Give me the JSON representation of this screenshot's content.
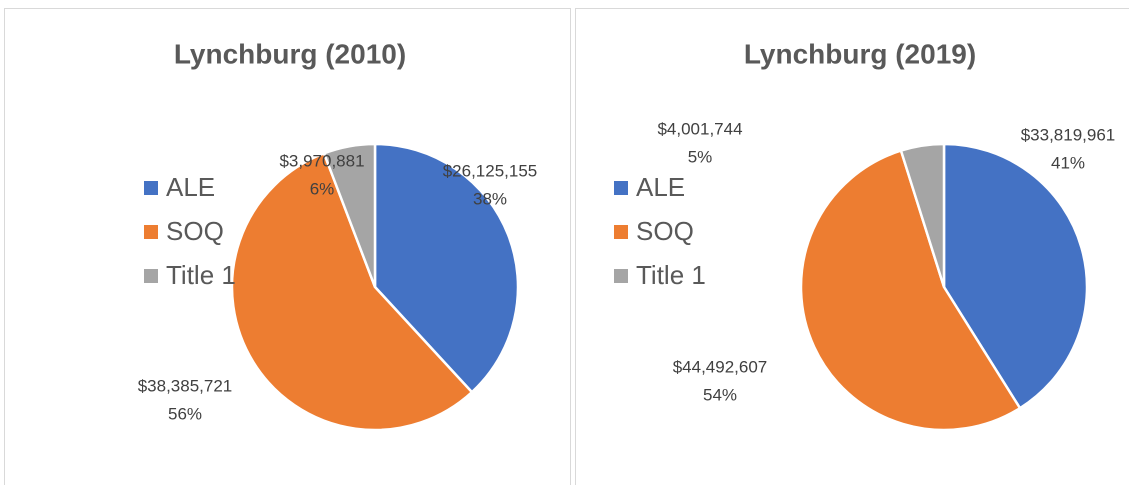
{
  "chart_data": [
    {
      "type": "pie",
      "title": "Lynchburg (2010)",
      "categories": [
        "ALE",
        "SOQ",
        "Title 1"
      ],
      "values": [
        26125155,
        38385721,
        3970881
      ],
      "value_labels": [
        "$26,125,155",
        "$38,385,721",
        "$3,970,881"
      ],
      "percent_labels": [
        "38%",
        "56%",
        "6%"
      ],
      "colors": [
        "#4472c4",
        "#ed7d31",
        "#a5a5a5"
      ],
      "legend": "left"
    },
    {
      "type": "pie",
      "title": "Lynchburg (2019)",
      "categories": [
        "ALE",
        "SOQ",
        "Title 1"
      ],
      "values": [
        33819961,
        44492607,
        4001744
      ],
      "value_labels": [
        "$33,819,961",
        "$44,492,607",
        "$4,001,744"
      ],
      "percent_labels": [
        "41%",
        "54%",
        "5%"
      ],
      "colors": [
        "#4472c4",
        "#ed7d31",
        "#a5a5a5"
      ],
      "legend": "left"
    }
  ]
}
